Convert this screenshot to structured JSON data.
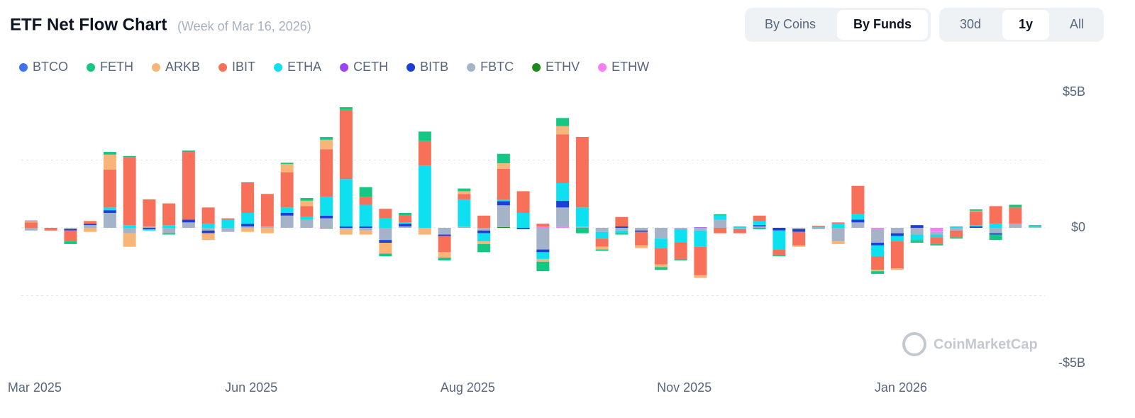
{
  "ui": {
    "buttons": [
      "By Coins",
      "By Funds",
      "30d",
      "1y",
      "All"
    ],
    "watermark": "CoinMarketCap"
  },
  "chart_data": {
    "type": "stacked-bar",
    "title": "ETF Net Flow Chart",
    "subtitle": "(Week of Mar 16, 2026)",
    "categories": [
      "Mar 2025",
      null,
      null,
      null,
      null,
      null,
      null,
      null,
      null,
      null,
      null,
      "Jun 2025",
      null,
      null,
      null,
      null,
      null,
      null,
      null,
      null,
      null,
      null,
      "Aug 2025",
      null,
      null,
      null,
      null,
      null,
      null,
      null,
      null,
      null,
      null,
      "Nov 2025",
      null,
      null,
      null,
      null,
      null,
      null,
      null,
      null,
      null,
      null,
      "Jan 2026",
      null,
      null,
      null,
      null,
      null,
      null,
      null
    ],
    "ylim": [
      -5,
      5
    ],
    "yticks": [
      {
        "value": 5,
        "label": "$5B"
      },
      {
        "value": 0,
        "label": "$0"
      },
      {
        "value": -5,
        "label": "-$5B"
      }
    ],
    "gridlines": [
      -2.5,
      0,
      2.5
    ],
    "grid": true,
    "series": [
      {
        "name": "BTCO",
        "color": "#3f72ee",
        "values": [
          0.02,
          0,
          0,
          0,
          0,
          0,
          0,
          0,
          0,
          0,
          0,
          0,
          0,
          0,
          0,
          0,
          0,
          0,
          0,
          0,
          0,
          0,
          0,
          0,
          0,
          0,
          0,
          0,
          0,
          0,
          0,
          0,
          0,
          0,
          0,
          0,
          0,
          0,
          0,
          0,
          0,
          0,
          0,
          0,
          0,
          0,
          0,
          0,
          0,
          0,
          0,
          0
        ]
      },
      {
        "name": "FETH",
        "color": "#16c784",
        "values": [
          0,
          0,
          -0.1,
          0,
          0.1,
          0.05,
          0,
          -0.05,
          0.05,
          0,
          0,
          0.03,
          0,
          0.05,
          0.1,
          0.1,
          0.1,
          0.35,
          -0.1,
          0.1,
          0.35,
          -0.1,
          0.1,
          -0.3,
          0.35,
          0,
          -0.35,
          0.3,
          -0.2,
          -0.05,
          -0.05,
          0,
          -0.1,
          -0.05,
          0,
          0.05,
          0,
          -0.05,
          -0.05,
          0,
          0,
          0,
          0,
          -0.1,
          0,
          -0.1,
          -0.05,
          -0.05,
          0.05,
          -0.2,
          0.1,
          0.03
        ]
      },
      {
        "name": "ARKB",
        "color": "#f8b577",
        "values": [
          0.05,
          0,
          0,
          -0.15,
          0.55,
          -0.5,
          0,
          0,
          0,
          -0.25,
          0,
          -0.15,
          -0.2,
          0.3,
          0.2,
          0.35,
          -0.2,
          -0.15,
          -0.4,
          0,
          -0.25,
          -0.2,
          0.1,
          -0.1,
          0.2,
          0,
          -0.1,
          0.3,
          0,
          -0.1,
          0,
          -0.1,
          -0.1,
          0,
          -0.1,
          0,
          0,
          0,
          0,
          -0.05,
          0,
          -0.1,
          0,
          -0.05,
          -0.05,
          0,
          0,
          0,
          0.03,
          0,
          0,
          0
        ]
      },
      {
        "name": "IBIT",
        "color": "#f6705a",
        "values": [
          0.2,
          -0.1,
          -0.4,
          0.1,
          1.4,
          2.5,
          1.0,
          0.8,
          2.5,
          0.6,
          0.05,
          1.1,
          1.2,
          1.3,
          0.4,
          1.75,
          2.55,
          0.3,
          0.35,
          0.25,
          0.9,
          -0.6,
          0.2,
          0.45,
          1.15,
          0.8,
          0.1,
          1.8,
          2.6,
          -0.3,
          0.35,
          -0.5,
          -0.6,
          -0.6,
          -1.05,
          -0.2,
          -0.15,
          0.2,
          -0.2,
          -0.5,
          0.05,
          0.05,
          1.05,
          -0.5,
          -1.0,
          0,
          -0.25,
          -0.25,
          0.5,
          0.65,
          0.6,
          0
        ]
      },
      {
        "name": "ETHA",
        "color": "#0fe0f0",
        "values": [
          0,
          0,
          0,
          0,
          0.1,
          0.1,
          -0.05,
          0.1,
          0,
          0.15,
          0.3,
          0.4,
          0,
          0.2,
          0.1,
          0.7,
          1.75,
          0.8,
          0.35,
          0.05,
          2.3,
          0,
          1.0,
          -0.3,
          0.05,
          0.55,
          -0.25,
          0.65,
          0.7,
          -0.25,
          -0.1,
          0,
          -0.35,
          -0.5,
          -0.6,
          0.15,
          0.05,
          0.15,
          -0.7,
          0,
          0.02,
          0.15,
          0.2,
          -0.4,
          -0.2,
          -0.2,
          -0.1,
          0.05,
          0.05,
          0.15,
          0,
          0.05
        ]
      },
      {
        "name": "CETH",
        "color": "#9b44f6",
        "values": [
          0,
          0,
          0,
          0,
          0,
          0,
          0,
          0,
          0,
          0,
          0,
          0,
          0,
          0,
          0,
          0,
          0,
          0,
          0,
          0,
          0,
          0,
          0,
          0,
          0,
          0,
          0,
          0,
          0,
          0,
          0,
          0,
          0,
          0,
          0.02,
          0,
          0,
          0,
          0,
          0,
          0,
          0,
          0,
          0,
          0,
          0,
          0,
          0,
          0,
          0,
          0,
          0
        ]
      },
      {
        "name": "BITB",
        "color": "#1d3fd6",
        "values": [
          0,
          0,
          -0.05,
          0.05,
          0.1,
          0,
          -0.05,
          0,
          0.1,
          -0.1,
          0,
          0.1,
          0,
          0.1,
          0,
          0.1,
          0.05,
          0.05,
          -0.1,
          0.1,
          0,
          -0.05,
          0,
          -0.1,
          0.15,
          -0.05,
          -0.1,
          0.25,
          0,
          0,
          0.05,
          -0.05,
          0,
          0,
          0,
          0,
          0,
          0.05,
          -0.1,
          -0.1,
          0,
          0,
          0.1,
          -0.1,
          -0.1,
          0.1,
          0,
          0,
          0.05,
          -0.05,
          0,
          0
        ]
      },
      {
        "name": "FBTC",
        "color": "#a5b3c8",
        "values": [
          -0.1,
          0,
          -0.05,
          0.1,
          0.55,
          -0.2,
          0.05,
          -0.2,
          0.2,
          -0.1,
          -0.15,
          0.05,
          0.05,
          0.45,
          0.3,
          0.35,
          -0.05,
          -0.1,
          -0.45,
          0.05,
          0,
          -0.25,
          0.05,
          -0.1,
          0.8,
          0,
          -0.8,
          0.7,
          0.05,
          -0.15,
          -0.1,
          -0.1,
          -0.4,
          -0.05,
          -0.1,
          0.3,
          -0.05,
          0.05,
          0,
          -0.05,
          -0.05,
          -0.5,
          0.2,
          -0.5,
          -0.2,
          -0.25,
          -0.1,
          -0.1,
          0,
          -0.2,
          0.15,
          0.02
        ]
      },
      {
        "name": "ETHV",
        "color": "#1a8a1a",
        "values": [
          0,
          0,
          0,
          0,
          0,
          0,
          0,
          0,
          0,
          0,
          0,
          0,
          0,
          0,
          0,
          -0.02,
          0,
          0,
          0,
          0,
          0,
          0,
          0,
          0,
          0.03,
          0,
          0,
          0,
          0,
          0,
          0,
          0,
          0,
          0,
          0,
          0,
          0,
          0,
          0,
          0,
          0,
          0,
          0,
          0,
          0,
          0,
          0,
          0,
          0,
          0,
          0,
          0
        ]
      },
      {
        "name": "ETHW",
        "color": "#f57ef5",
        "values": [
          0,
          0,
          0,
          0,
          0,
          0,
          0,
          0,
          0,
          0,
          0,
          0,
          0,
          0,
          0,
          0,
          0,
          0,
          0,
          0,
          0,
          0,
          0,
          0,
          0,
          0,
          0.05,
          0.05,
          0,
          0,
          0,
          0,
          0,
          0,
          0,
          0,
          0,
          0,
          0,
          0,
          0,
          0,
          0,
          -0.05,
          0,
          0,
          -0.15,
          0,
          0,
          0,
          0,
          0
        ]
      }
    ]
  }
}
